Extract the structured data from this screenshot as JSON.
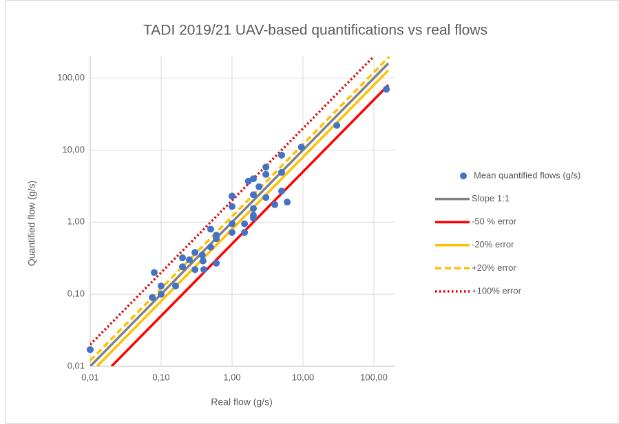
{
  "chart_data": {
    "type": "scatter",
    "title": "TADI 2019/21 UAV-based quantifications vs real flows",
    "x_label": "Real flow (g/s)",
    "y_label": "Quantified flow (g/s)",
    "xscale": "log",
    "yscale": "log",
    "grid": true,
    "legend": "right",
    "xlim": [
      0.01,
      200
    ],
    "ylim": [
      0.01,
      200
    ],
    "xticks": [
      {
        "value": 0.01,
        "label": "0,01"
      },
      {
        "value": 0.1,
        "label": "0,10"
      },
      {
        "value": 1,
        "label": "1,00"
      },
      {
        "value": 10,
        "label": "10,00"
      },
      {
        "value": 100,
        "label": "100,00"
      }
    ],
    "yticks": [
      {
        "value": 0.01,
        "label": "0,01"
      },
      {
        "value": 0.1,
        "label": "0,10"
      },
      {
        "value": 1,
        "label": "1,00"
      },
      {
        "value": 10,
        "label": "10,00"
      },
      {
        "value": 100,
        "label": "100,00"
      }
    ],
    "series": [
      {
        "name": "Mean quantified flows (g/s)",
        "mode": "markers",
        "color": "#4472c4",
        "x": [
          0.01,
          0.08,
          0.075,
          0.1,
          0.1,
          0.16,
          0.2,
          0.2,
          0.25,
          0.3,
          0.3,
          0.38,
          0.39,
          0.4,
          0.5,
          0.5,
          0.6,
          0.6,
          0.6,
          1,
          1,
          1,
          1,
          1.5,
          1.5,
          1.7,
          2,
          2,
          2,
          2,
          2,
          2.4,
          3,
          3,
          3,
          4,
          5,
          5,
          5,
          6,
          9.5,
          30,
          150
        ],
        "values": [
          0.017,
          0.2,
          0.09,
          0.13,
          0.1,
          0.13,
          0.32,
          0.24,
          0.3,
          0.38,
          0.22,
          0.35,
          0.29,
          0.22,
          0.45,
          0.8,
          0.59,
          0.66,
          0.27,
          2.3,
          1.65,
          0.95,
          0.72,
          0.95,
          0.72,
          3.7,
          4,
          2.4,
          1.55,
          1.25,
          1.14,
          3.1,
          5.8,
          4.6,
          2.2,
          1.75,
          8.5,
          4.9,
          2.7,
          1.9,
          11,
          22,
          70
        ]
      },
      {
        "name": "Slope 1:1",
        "mode": "lines",
        "dash": "solid",
        "color": "#808080",
        "x": [
          0.01,
          160
        ],
        "values": [
          0.01,
          160
        ]
      },
      {
        "name": "-50 % error",
        "mode": "lines",
        "dash": "solid",
        "color": "#ff0000",
        "x": [
          0.02,
          160
        ],
        "values": [
          0.01,
          80
        ]
      },
      {
        "name": "-20% error",
        "mode": "lines",
        "dash": "solid",
        "color": "#ffc000",
        "x": [
          0.0125,
          160
        ],
        "values": [
          0.01,
          128
        ]
      },
      {
        "name": "+20% error",
        "mode": "lines",
        "dash": "dashed",
        "color": "#ffc000",
        "x": [
          0.01,
          165
        ],
        "values": [
          0.012,
          198
        ]
      },
      {
        "name": "+100% error",
        "mode": "lines",
        "dash": "dotted",
        "color": "#e00000",
        "x": [
          0.01,
          95
        ],
        "values": [
          0.02,
          190
        ]
      }
    ]
  }
}
